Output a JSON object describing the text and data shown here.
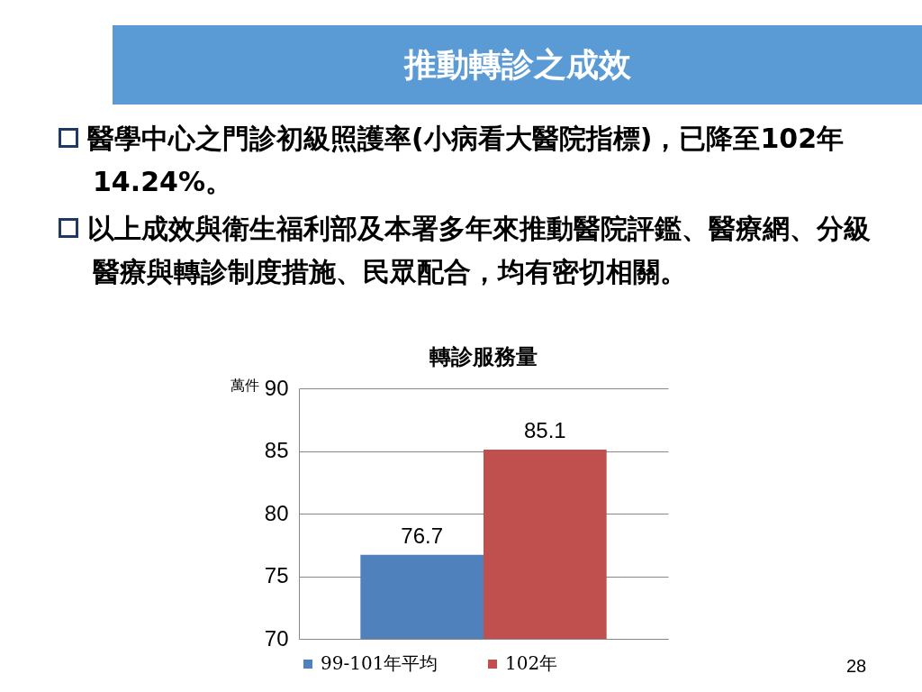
{
  "chart_data": {
    "type": "bar",
    "title": "推動轉診之成效",
    "subtitle": "轉診服務量",
    "ylabel": "萬件",
    "annotations": [
      "醫學中心之門診初級照護率(小病看大醫院指標)，已降至102年14.24%。",
      "以上成效與衛生福利部及本署多年來推動醫院評鑑、醫療網、分級醫療與轉診制度措施、民眾配合，均有密切相關。",
      "28"
    ],
    "categories": [
      null
    ],
    "series": [
      {
        "name": "99-101年平均",
        "color": "#4f81bd",
        "values": [
          76.7
        ]
      },
      {
        "name": "102年",
        "color": "#c0504d",
        "values": [
          85.1
        ]
      }
    ],
    "ylim": [
      70,
      90
    ],
    "yticks": [
      70,
      75,
      80,
      85,
      90
    ],
    "grid": "y",
    "legend": "bottom",
    "tick_labels": "y",
    "data_labels": true
  }
}
